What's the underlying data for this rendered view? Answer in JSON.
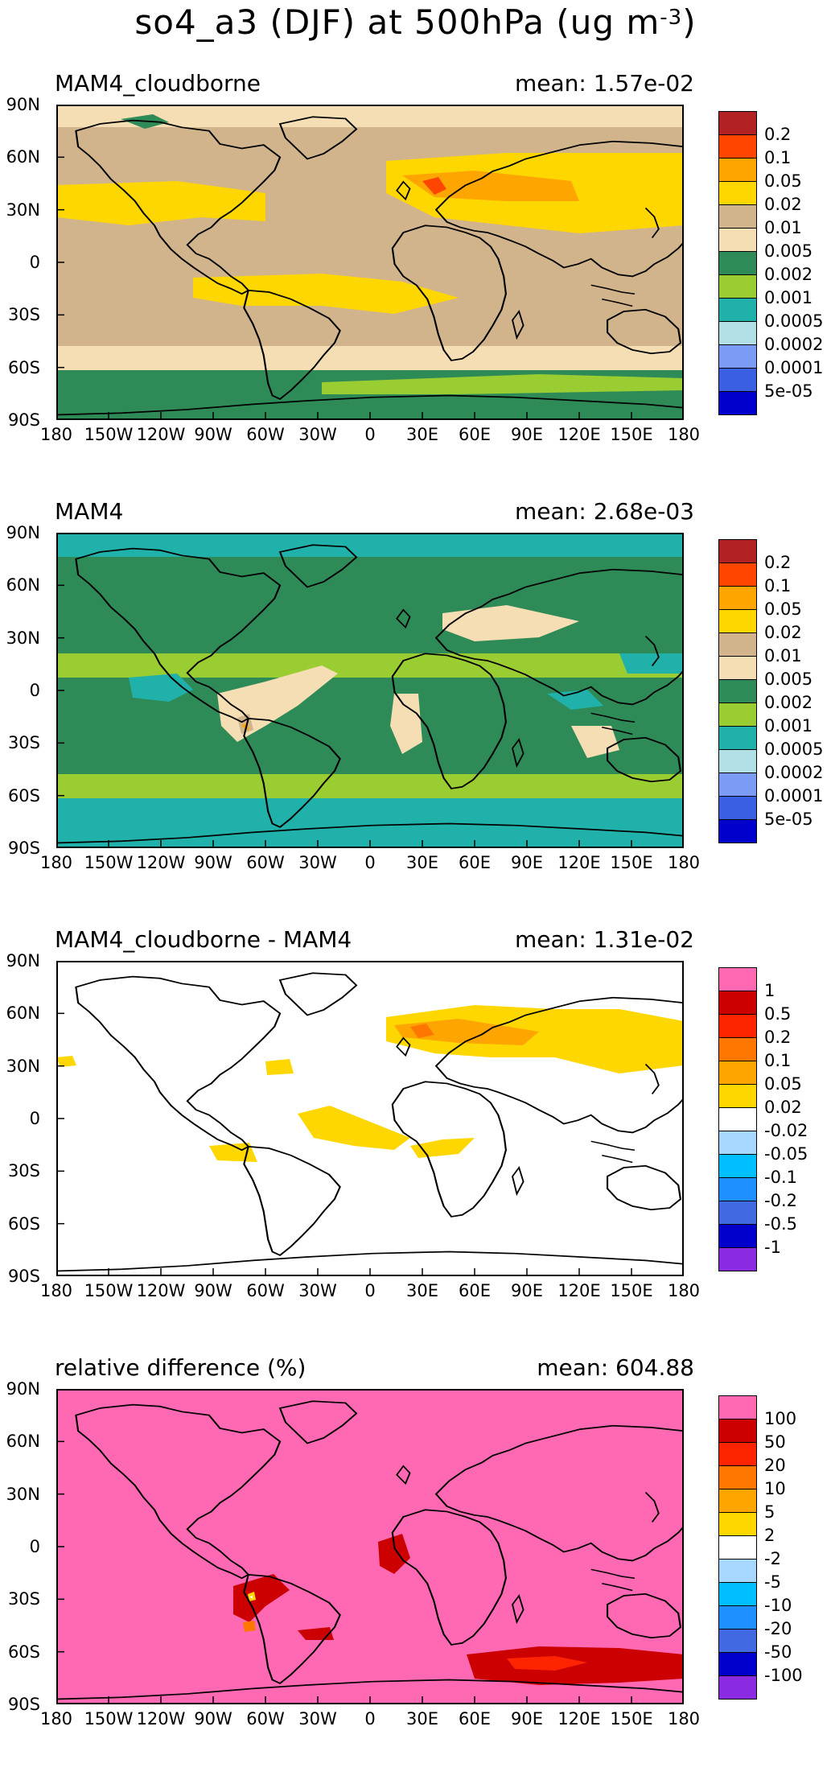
{
  "figure": {
    "title_main": "so4_a3 (DJF) at 500hPa (ug m",
    "title_exp": "-3",
    "title_end": ")"
  },
  "axes": {
    "lat_labels": [
      "90N",
      "60N",
      "30N",
      "0",
      "30S",
      "60S",
      "90S"
    ],
    "lon_labels": [
      "180",
      "150W",
      "120W",
      "90W",
      "60W",
      "30W",
      "0",
      "30E",
      "60E",
      "90E",
      "120E",
      "150E",
      "180"
    ]
  },
  "panels": [
    {
      "title": "MAM4_cloudborne",
      "mean": "mean: 1.57e-02",
      "colorbar": {
        "labels": [
          "0.2",
          "0.1",
          "0.05",
          "0.02",
          "0.01",
          "0.005",
          "0.002",
          "0.001",
          "0.0005",
          "0.0002",
          "0.0001",
          "5e-05"
        ],
        "colors": [
          "#B22222",
          "#FF4500",
          "#FFA500",
          "#FFD700",
          "#D2B48C",
          "#F5DEB3",
          "#2E8B57",
          "#9ACD32",
          "#20B2AA",
          "#B0E0E6",
          "#7B9CF5",
          "#3A5FE0",
          "#0000CD"
        ]
      },
      "background": "#D2B48C"
    },
    {
      "title": "MAM4",
      "mean": "mean: 2.68e-03",
      "colorbar": {
        "labels": [
          "0.2",
          "0.1",
          "0.05",
          "0.02",
          "0.01",
          "0.005",
          "0.002",
          "0.001",
          "0.0005",
          "0.0002",
          "0.0001",
          "5e-05"
        ],
        "colors": [
          "#B22222",
          "#FF4500",
          "#FFA500",
          "#FFD700",
          "#D2B48C",
          "#F5DEB3",
          "#2E8B57",
          "#9ACD32",
          "#20B2AA",
          "#B0E0E6",
          "#7B9CF5",
          "#3A5FE0",
          "#0000CD"
        ]
      },
      "background": "#2E8B57"
    },
    {
      "title": "MAM4_cloudborne - MAM4",
      "mean": "mean: 1.31e-02",
      "colorbar": {
        "labels": [
          "1",
          "0.5",
          "0.2",
          "0.1",
          "0.05",
          "0.02",
          "-0.02",
          "-0.05",
          "-0.1",
          "-0.2",
          "-0.5",
          "-1"
        ],
        "colors": [
          "#FF69B4",
          "#CD0000",
          "#FF2400",
          "#FF7700",
          "#FFA500",
          "#FFD700",
          "#FFFFFF",
          "#A6D8FF",
          "#00BFFF",
          "#1E90FF",
          "#4169E1",
          "#0000CD",
          "#8A2BE2"
        ]
      },
      "background": "#FFFFFF"
    },
    {
      "title": "relative difference (%)",
      "mean": "mean: 604.88",
      "colorbar": {
        "labels": [
          "100",
          "50",
          "20",
          "10",
          "5",
          "2",
          "-2",
          "-5",
          "-10",
          "-20",
          "-50",
          "-100"
        ],
        "colors": [
          "#FF69B4",
          "#CD0000",
          "#FF2400",
          "#FF7700",
          "#FFA500",
          "#FFD700",
          "#FFFFFF",
          "#A6D8FF",
          "#00BFFF",
          "#1E90FF",
          "#4169E1",
          "#0000CD",
          "#8A2BE2"
        ]
      },
      "background": "#FF69B4"
    }
  ]
}
